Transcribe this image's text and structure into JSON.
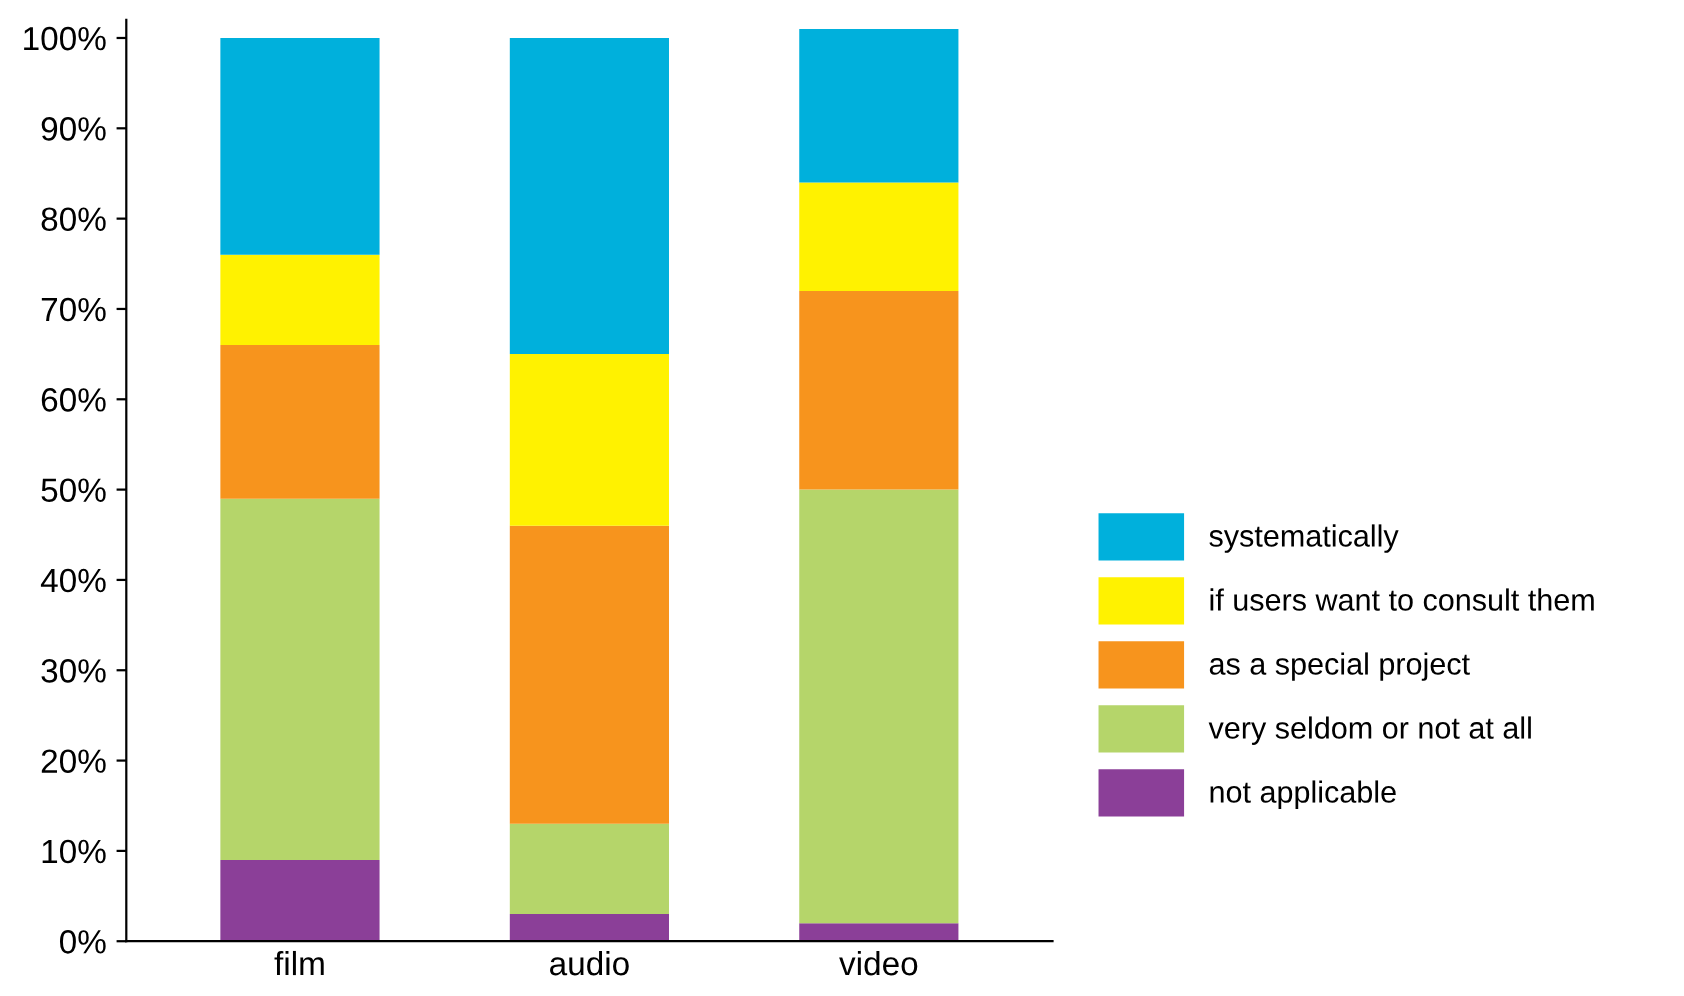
{
  "chart_data": {
    "type": "bar",
    "stacked": true,
    "categories": [
      "film",
      "audio",
      "video"
    ],
    "series": [
      {
        "name": "not applicable",
        "color": "#8b3f98",
        "values": [
          9,
          3,
          2
        ]
      },
      {
        "name": "very seldom or not at all",
        "color": "#b5d56a",
        "values": [
          40,
          10,
          48
        ]
      },
      {
        "name": "as a special project",
        "color": "#f7941d",
        "values": [
          17,
          33,
          22
        ]
      },
      {
        "name": "if users want to consult them",
        "color": "#fff200",
        "values": [
          10,
          19,
          12
        ]
      },
      {
        "name": "systematically",
        "color": "#00b0dc",
        "values": [
          24,
          35,
          17
        ]
      }
    ],
    "ylim": [
      0,
      102
    ],
    "yticks": [
      {
        "value": 0,
        "label": "0%"
      },
      {
        "value": 10,
        "label": "10%"
      },
      {
        "value": 20,
        "label": "20%"
      },
      {
        "value": 30,
        "label": "30%"
      },
      {
        "value": 40,
        "label": "40%"
      },
      {
        "value": 50,
        "label": "50%"
      },
      {
        "value": 60,
        "label": "60%"
      },
      {
        "value": 70,
        "label": "70%"
      },
      {
        "value": 80,
        "label": "80%"
      },
      {
        "value": 90,
        "label": "90%"
      },
      {
        "value": 100,
        "label": "100%"
      }
    ],
    "grid": false,
    "legend": "right"
  }
}
